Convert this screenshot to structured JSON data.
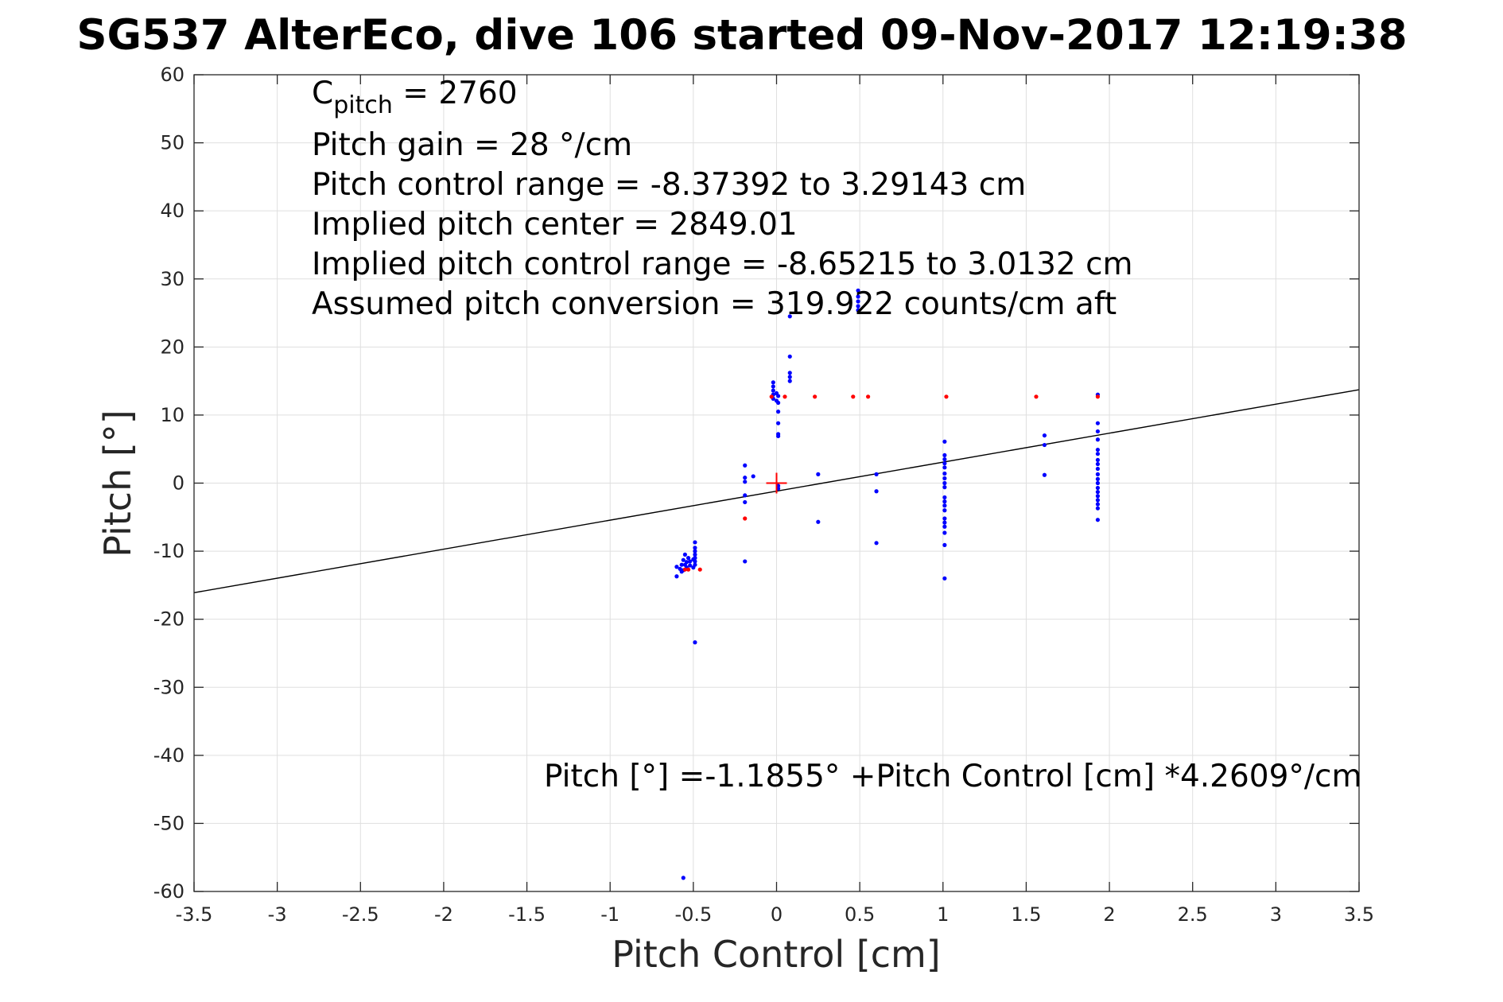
{
  "chart_data": {
    "type": "scatter",
    "title": "SG537 AlterEco, dive 106 started 09-Nov-2017 12:19:38",
    "xlabel": "Pitch Control [cm]",
    "ylabel": "Pitch [°]",
    "xlim": [
      -3.5,
      3.5
    ],
    "ylim": [
      -60,
      60
    ],
    "xticks": [
      -3.5,
      -3,
      -2.5,
      -2,
      -1.5,
      -1,
      -0.5,
      0,
      0.5,
      1,
      1.5,
      2,
      2.5,
      3,
      3.5
    ],
    "xtick_labels": [
      "-3.5",
      "-3",
      "-2.5",
      "-2",
      "-1.5",
      "-1",
      "-0.5",
      "0",
      "0.5",
      "1",
      "1.5",
      "2",
      "2.5",
      "3",
      "3.5"
    ],
    "yticks": [
      -60,
      -50,
      -40,
      -30,
      -20,
      -10,
      0,
      10,
      20,
      30,
      40,
      50,
      60
    ],
    "ytick_labels": [
      "-60",
      "-50",
      "-40",
      "-30",
      "-20",
      "-10",
      "0",
      "10",
      "20",
      "30",
      "40",
      "50",
      "60"
    ],
    "grid": true,
    "annotations": {
      "cpitch_symbol": "C",
      "cpitch_subscript": "pitch",
      "cpitch_value": " = 2760",
      "lines": [
        "Pitch gain = 28 °/cm",
        "Pitch control range = -8.37392 to 3.29143 cm",
        "Implied pitch center = 2849.01",
        "Implied pitch control range = -8.65215 to 3.0132 cm",
        "Assumed pitch conversion = 319.922 counts/cm aft"
      ],
      "fit_equation": "Pitch [°] =-1.1855° +Pitch Control [cm] *4.2609°/cm"
    },
    "fit_line": {
      "intercept": -1.1855,
      "slope": 4.2609,
      "color": "#000000"
    },
    "center_marker": {
      "x": 0,
      "y": 0,
      "color": "#ff0000"
    },
    "series": [
      {
        "color": "#0000ff",
        "points": [
          [
            -0.6,
            -12.3
          ],
          [
            -0.6,
            -13.7
          ],
          [
            -0.58,
            -12.6
          ],
          [
            -0.57,
            -12.0
          ],
          [
            -0.57,
            -13.0
          ],
          [
            -0.56,
            -11.3
          ],
          [
            -0.56,
            -12.8
          ],
          [
            -0.55,
            -10.5
          ],
          [
            -0.55,
            -12.0
          ],
          [
            -0.54,
            -11.6
          ],
          [
            -0.54,
            -12.4
          ],
          [
            -0.53,
            -11.0
          ],
          [
            -0.52,
            -12.1
          ],
          [
            -0.52,
            -11.5
          ],
          [
            -0.5,
            -11.2
          ],
          [
            -0.5,
            -12.4
          ],
          [
            -0.49,
            -9.5
          ],
          [
            -0.49,
            -10.0
          ],
          [
            -0.49,
            -10.5
          ],
          [
            -0.49,
            -11.0
          ],
          [
            -0.49,
            -11.5
          ],
          [
            -0.49,
            -12.0
          ],
          [
            -0.49,
            -8.7
          ],
          [
            -0.49,
            -23.4
          ],
          [
            -0.56,
            -58.0
          ],
          [
            -0.19,
            2.6
          ],
          [
            -0.19,
            0.8
          ],
          [
            -0.19,
            0.2
          ],
          [
            -0.19,
            -1.8
          ],
          [
            -0.19,
            -2.8
          ],
          [
            -0.19,
            -11.5
          ],
          [
            -0.14,
            1.0
          ],
          [
            -0.02,
            14.8
          ],
          [
            -0.02,
            14.2
          ],
          [
            -0.02,
            13.6
          ],
          [
            -0.02,
            13.0
          ],
          [
            -0.02,
            12.4
          ],
          [
            0.0,
            13.2
          ],
          [
            0.0,
            12.1
          ],
          [
            0.01,
            12.8
          ],
          [
            0.01,
            11.8
          ],
          [
            0.01,
            10.5
          ],
          [
            0.01,
            8.8
          ],
          [
            0.01,
            7.2
          ],
          [
            0.01,
            6.9
          ],
          [
            0.01,
            -0.4
          ],
          [
            0.01,
            -0.8
          ],
          [
            0.08,
            18.6
          ],
          [
            0.08,
            16.2
          ],
          [
            0.08,
            15.6
          ],
          [
            0.08,
            15.0
          ],
          [
            0.08,
            24.5
          ],
          [
            0.25,
            1.3
          ],
          [
            0.25,
            -5.7
          ],
          [
            0.49,
            28.3
          ],
          [
            0.49,
            27.4
          ],
          [
            0.49,
            26.7
          ],
          [
            0.49,
            26.0
          ],
          [
            0.49,
            25.4
          ],
          [
            0.6,
            1.3
          ],
          [
            0.6,
            -1.2
          ],
          [
            0.6,
            -8.8
          ],
          [
            1.01,
            6.1
          ],
          [
            1.01,
            4.1
          ],
          [
            1.01,
            3.5
          ],
          [
            1.01,
            2.9
          ],
          [
            1.01,
            2.3
          ],
          [
            1.01,
            1.4
          ],
          [
            1.01,
            0.7
          ],
          [
            1.01,
            0.0
          ],
          [
            1.01,
            -0.6
          ],
          [
            1.01,
            -2.1
          ],
          [
            1.01,
            -2.7
          ],
          [
            1.01,
            -3.3
          ],
          [
            1.01,
            -4.0
          ],
          [
            1.01,
            -5.2
          ],
          [
            1.01,
            -5.8
          ],
          [
            1.01,
            -6.4
          ],
          [
            1.01,
            -7.3
          ],
          [
            1.01,
            -9.1
          ],
          [
            1.01,
            -14.0
          ],
          [
            1.61,
            7.0
          ],
          [
            1.61,
            5.6
          ],
          [
            1.61,
            1.2
          ],
          [
            1.93,
            13.0
          ],
          [
            1.93,
            8.8
          ],
          [
            1.93,
            7.6
          ],
          [
            1.93,
            6.4
          ],
          [
            1.93,
            4.9
          ],
          [
            1.93,
            4.3
          ],
          [
            1.93,
            3.4
          ],
          [
            1.93,
            2.8
          ],
          [
            1.93,
            2.1
          ],
          [
            1.93,
            1.3
          ],
          [
            1.93,
            0.6
          ],
          [
            1.93,
            0.0
          ],
          [
            1.93,
            -0.7
          ],
          [
            1.93,
            -1.3
          ],
          [
            1.93,
            -1.9
          ],
          [
            1.93,
            -2.5
          ],
          [
            1.93,
            -3.1
          ],
          [
            1.93,
            -3.7
          ],
          [
            1.93,
            -5.4
          ]
        ]
      },
      {
        "color": "#ff0000",
        "points": [
          [
            -0.55,
            -12.7
          ],
          [
            -0.53,
            -12.7
          ],
          [
            -0.46,
            -12.7
          ],
          [
            -0.19,
            -5.2
          ],
          [
            -0.03,
            12.7
          ],
          [
            0.05,
            12.7
          ],
          [
            0.23,
            12.7
          ],
          [
            0.46,
            12.7
          ],
          [
            0.55,
            12.7
          ],
          [
            1.02,
            12.7
          ],
          [
            1.56,
            12.7
          ],
          [
            1.93,
            12.7
          ]
        ]
      }
    ]
  }
}
